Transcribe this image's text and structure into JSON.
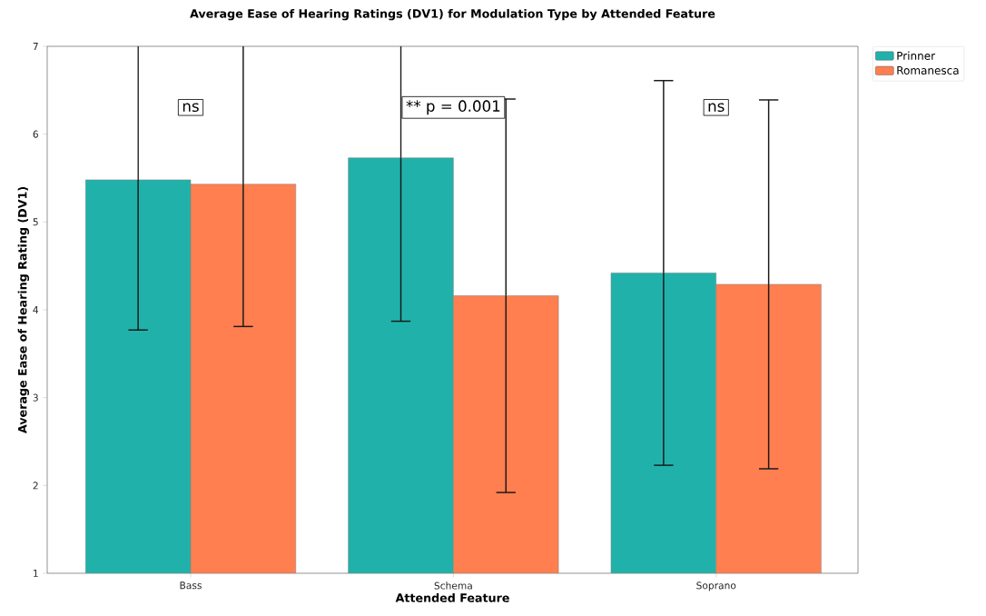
{
  "chart_data": {
    "type": "bar",
    "title": "Average Ease of Hearing Ratings (DV1) for Modulation Type by Attended Feature",
    "xlabel": "Attended Feature",
    "ylabel": "Average Ease of Hearing Rating (DV1)",
    "categories": [
      "Bass",
      "Schema",
      "Soprano"
    ],
    "series": [
      {
        "name": "Prinner",
        "color": "#20b2aa",
        "values": [
          5.48,
          5.73,
          4.42
        ],
        "errors": [
          1.71,
          1.86,
          2.19
        ]
      },
      {
        "name": "Romanesca",
        "color": "#ff7f50",
        "values": [
          5.43,
          4.16,
          4.29
        ],
        "errors": [
          1.62,
          2.24,
          2.1
        ]
      }
    ],
    "ylim": [
      1,
      7
    ],
    "yticks": [
      1,
      2,
      3,
      4,
      5,
      6,
      7
    ],
    "annotations": [
      "ns",
      "** p = 0.001",
      "ns"
    ],
    "legend": "top right"
  }
}
